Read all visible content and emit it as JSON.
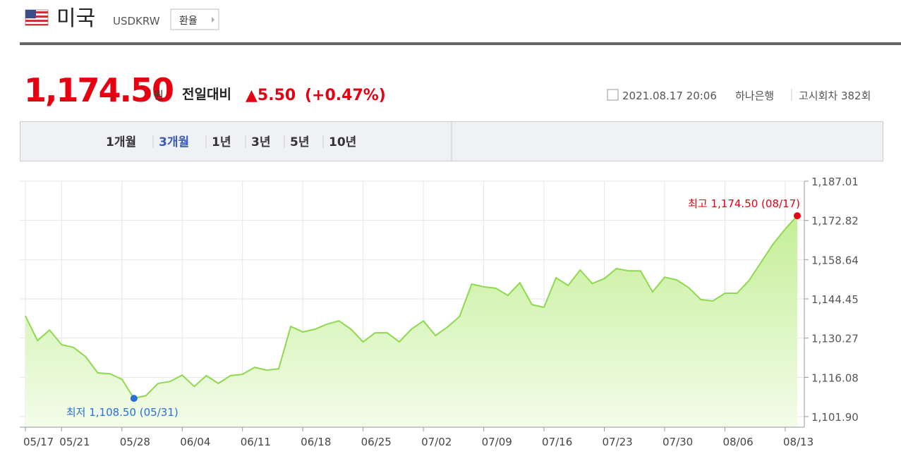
{
  "header": {
    "country": "미국",
    "code": "USDKRW",
    "button": "환율"
  },
  "quote": {
    "price": "1,174.50",
    "unit": "원",
    "change_label": "전일대비",
    "change": "▲5.50",
    "change_pct": "(+0.47%)",
    "datetime": "2021.08.17 20:06",
    "bank": "하나은행",
    "round": "고시회차 382회"
  },
  "tabs": [
    "1개월",
    "3개월",
    "1년",
    "3년",
    "5년",
    "10년"
  ],
  "active_tab": 1,
  "chart_data": {
    "type": "area",
    "color": "#8fd94f",
    "grid": true,
    "categories": [
      "05/17",
      null,
      null,
      "05/21",
      null,
      null,
      null,
      null,
      "05/28",
      null,
      null,
      null,
      null,
      "06/04",
      null,
      null,
      null,
      null,
      "06/11",
      null,
      null,
      null,
      null,
      "06/18",
      null,
      null,
      null,
      null,
      "06/25",
      null,
      null,
      null,
      null,
      "07/02",
      null,
      null,
      null,
      null,
      "07/09",
      null,
      null,
      null,
      null,
      "07/16",
      null,
      null,
      null,
      null,
      "07/23",
      null,
      null,
      null,
      null,
      "07/30",
      null,
      null,
      null,
      null,
      "08/06",
      null,
      null,
      null,
      null,
      "08/13",
      null
    ],
    "values": [
      1138.3,
      1129.4,
      1133.2,
      1127.9,
      1126.9,
      1123.5,
      1117.7,
      1117.4,
      1115.4,
      1108.5,
      1109.5,
      1113.9,
      1114.6,
      1116.9,
      1112.8,
      1116.7,
      1113.9,
      1116.7,
      1117.2,
      1119.7,
      1118.7,
      1119.2,
      1134.5,
      1132.5,
      1133.5,
      1135.3,
      1136.5,
      1133.5,
      1128.9,
      1132.2,
      1132.2,
      1128.9,
      1133.5,
      1136.5,
      1131.2,
      1134.3,
      1138.1,
      1149.8,
      1148.8,
      1148.3,
      1145.7,
      1150.3,
      1142.4,
      1141.4,
      1152.1,
      1149.3,
      1154.9,
      1150.0,
      1151.8,
      1155.4,
      1154.6,
      1154.6,
      1147.0,
      1152.3,
      1151.3,
      1148.5,
      1144.2,
      1143.7,
      1146.5,
      1146.5,
      1151.1,
      1157.7,
      1164.3,
      1169.7,
      1174.5
    ],
    "ylim": [
      1101.9,
      1187.01
    ],
    "yticks": [
      {
        "value": 1101.9,
        "label": "1,101.90"
      },
      {
        "value": 1116.08,
        "label": "1,116.08"
      },
      {
        "value": 1130.27,
        "label": "1,130.27"
      },
      {
        "value": 1144.45,
        "label": "1,144.45"
      },
      {
        "value": 1158.64,
        "label": "1,158.64"
      },
      {
        "value": 1172.82,
        "label": "1,172.82"
      },
      {
        "value": 1187.01,
        "label": "1,187.01"
      }
    ],
    "high_label": "최고 1,174.50 (08/17)",
    "low_label": "최저 1,108.50 (05/31)"
  }
}
